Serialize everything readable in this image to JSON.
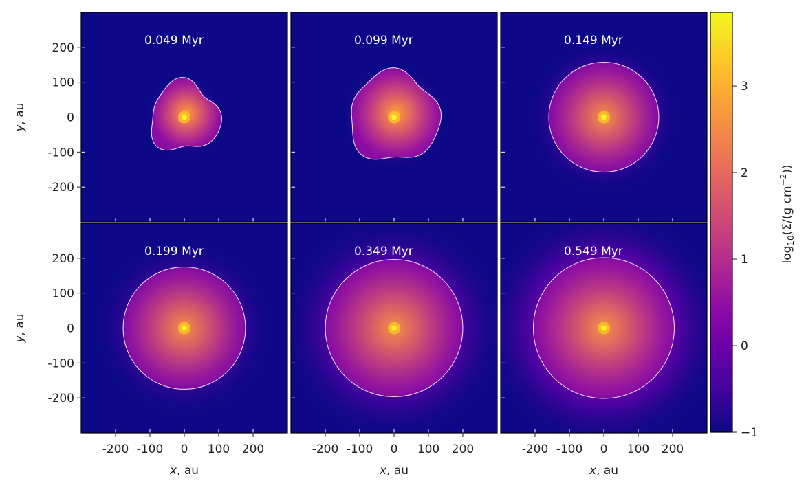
{
  "chart_data": {
    "type": "heatmap",
    "layout": {
      "rows": 2,
      "cols": 3
    },
    "xlabel_var": "x",
    "xlabel_unit": ", au",
    "ylabel_var": "y",
    "ylabel_unit": ", au",
    "xlim": [
      -300,
      300
    ],
    "ylim": [
      -300,
      300
    ],
    "xticks": [
      -200,
      -100,
      0,
      100,
      200
    ],
    "xtick_labels": [
      "-200",
      "-100",
      "0",
      "100",
      "200"
    ],
    "yticks": [
      200,
      100,
      0,
      -100,
      -200
    ],
    "ytick_labels": [
      "200",
      "100",
      "0",
      "-100",
      "-200"
    ],
    "colorbar": {
      "label_prefix": "log",
      "label_sub": "10",
      "label_middle": "(Σ/(g cm",
      "label_sup": "−2",
      "label_suffix": "))",
      "range": [
        -1,
        3.85
      ],
      "ticks": [
        3,
        2,
        1,
        0,
        -1
      ],
      "tick_labels": [
        "3",
        "2",
        "1",
        "0",
        "−1"
      ],
      "colormap": "plasma"
    },
    "panels": [
      {
        "time_label": "0.049 Myr",
        "time_myr": 0.049,
        "disk_radius_au": 100,
        "halo_radius_au": 115,
        "halo_level": -0.2,
        "wavy": true
      },
      {
        "time_label": "0.099 Myr",
        "time_myr": 0.099,
        "disk_radius_au": 130,
        "halo_radius_au": 150,
        "halo_level": 0.1,
        "wavy": true
      },
      {
        "time_label": "0.149 Myr",
        "time_myr": 0.149,
        "disk_radius_au": 160,
        "halo_radius_au": 220,
        "halo_level": -0.3,
        "wavy": false
      },
      {
        "time_label": "0.199 Myr",
        "time_myr": 0.199,
        "disk_radius_au": 178,
        "halo_radius_au": 260,
        "halo_level": -0.5,
        "wavy": false
      },
      {
        "time_label": "0.349 Myr",
        "time_myr": 0.349,
        "disk_radius_au": 200,
        "halo_radius_au": 330,
        "halo_level": -0.4,
        "wavy": false
      },
      {
        "time_label": "0.549 Myr",
        "time_myr": 0.549,
        "disk_radius_au": 205,
        "halo_radius_au": 360,
        "halo_level": -0.3,
        "wavy": false
      }
    ]
  }
}
